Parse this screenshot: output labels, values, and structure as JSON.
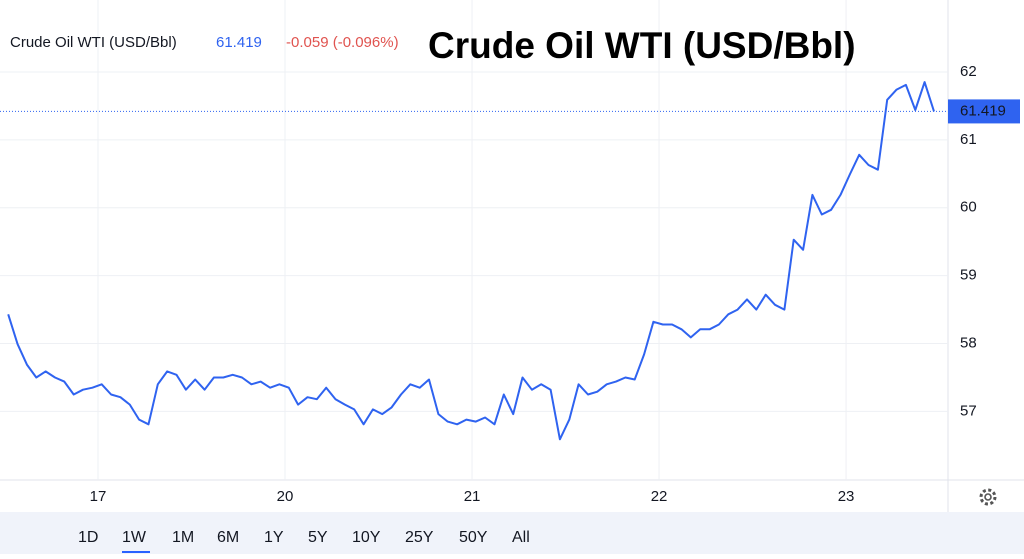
{
  "chart_data": {
    "type": "line",
    "title": "Crude Oil WTI (USD/Bbl)",
    "change_label": "-0.059 (-0.096%)",
    "x": [
      0.52,
      0.57,
      0.62,
      0.67,
      0.72,
      0.77,
      0.82,
      0.87,
      0.92,
      0.97,
      1.02,
      1.07,
      1.12,
      1.17,
      1.22,
      1.27,
      1.32,
      1.37,
      1.42,
      1.47,
      1.52,
      1.57,
      1.62,
      1.67,
      1.72,
      1.77,
      1.82,
      1.87,
      1.92,
      1.97,
      2.02,
      2.07,
      2.12,
      2.17,
      2.22,
      2.27,
      2.32,
      2.37,
      2.42,
      2.47,
      2.52,
      2.57,
      2.62,
      2.67,
      2.72,
      2.77,
      2.82,
      2.87,
      2.92,
      2.97,
      3.02,
      3.07,
      3.12,
      3.17,
      3.22,
      3.27,
      3.32,
      3.37,
      3.42,
      3.47,
      3.52,
      3.57,
      3.62,
      3.67,
      3.72,
      3.77,
      3.82,
      3.87,
      3.92,
      3.97,
      4.02,
      4.07,
      4.12,
      4.17,
      4.22,
      4.27,
      4.32,
      4.37,
      4.42,
      4.47,
      4.52,
      4.57,
      4.62,
      4.67,
      4.72,
      4.77,
      4.82,
      4.87,
      4.92,
      4.97,
      5.02,
      5.07,
      5.12,
      5.17,
      5.22,
      5.27,
      5.32,
      5.37,
      5.42,
      5.47
    ],
    "series": [
      {
        "name": "Crude Oil WTI (USD/Bbl)",
        "color": "#2f63f0",
        "values": [
          58.43,
          57.99,
          57.69,
          57.5,
          57.59,
          57.5,
          57.44,
          57.25,
          57.32,
          57.35,
          57.4,
          57.25,
          57.21,
          57.1,
          56.88,
          56.81,
          57.4,
          57.59,
          57.54,
          57.32,
          57.47,
          57.32,
          57.5,
          57.5,
          57.54,
          57.5,
          57.4,
          57.44,
          57.35,
          57.4,
          57.35,
          57.1,
          57.21,
          57.18,
          57.35,
          57.18,
          57.1,
          57.03,
          56.81,
          57.03,
          56.96,
          57.06,
          57.25,
          57.4,
          57.35,
          57.47,
          56.96,
          56.85,
          56.81,
          56.88,
          56.85,
          56.91,
          56.81,
          57.25,
          56.96,
          57.5,
          57.32,
          57.4,
          57.32,
          56.59,
          56.88,
          57.4,
          57.25,
          57.29,
          57.4,
          57.44,
          57.5,
          57.47,
          57.84,
          58.32,
          58.28,
          58.28,
          58.21,
          58.09,
          58.21,
          58.21,
          58.28,
          58.43,
          58.5,
          58.65,
          58.5,
          58.72,
          58.57,
          58.5,
          59.53,
          59.38,
          60.19,
          59.9,
          59.97,
          60.19,
          60.49,
          60.78,
          60.63,
          60.56,
          61.59,
          61.74,
          61.81,
          61.44,
          61.85,
          61.419
        ]
      }
    ],
    "xlim": [
      0.476,
      5.545
    ],
    "xticks": [
      {
        "value": 1,
        "label": "17"
      },
      {
        "value": 2,
        "label": "20"
      },
      {
        "value": 3,
        "label": "21"
      },
      {
        "value": 4,
        "label": "22"
      },
      {
        "value": 5,
        "label": "23"
      }
    ],
    "ylim": [
      55.99,
      63.06
    ],
    "yticks": [
      57,
      58,
      59,
      60,
      61,
      62
    ],
    "grid": true,
    "ranges": [
      "1D",
      "1W",
      "1M",
      "6M",
      "1Y",
      "5Y",
      "10Y",
      "25Y",
      "50Y",
      "All"
    ],
    "selected_range": "1W"
  }
}
